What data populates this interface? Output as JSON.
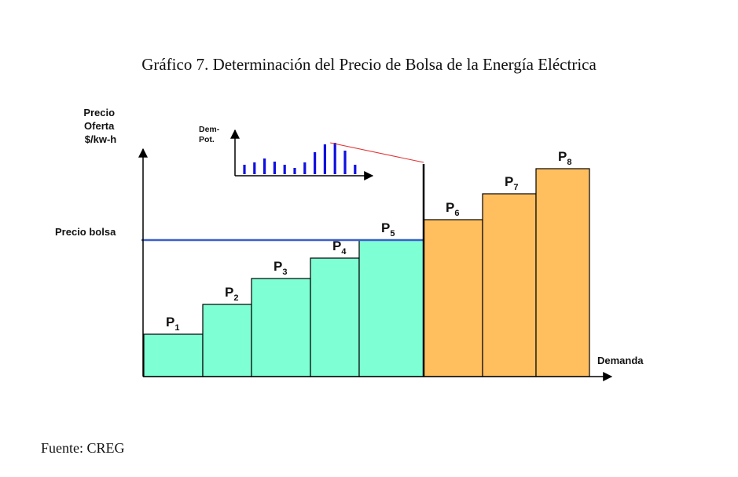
{
  "title": "Gráfico 7. Determinación del Precio de Bolsa de la Energía Eléctrica",
  "source": "Fuente: CREG",
  "chart_data": {
    "type": "bar",
    "y_axis_label": [
      "Precio",
      "Oferta",
      "$/kw-h"
    ],
    "x_axis_label": "Demanda",
    "reference_line": {
      "label": "Precio bolsa",
      "value": 174,
      "color": "#3a5fcd"
    },
    "categories": [
      "P1",
      "P2",
      "P3",
      "P4",
      "P5",
      "P6",
      "P7",
      "P8"
    ],
    "widths": [
      75,
      62,
      75,
      62,
      82,
      75,
      68,
      68
    ],
    "values": [
      54,
      92,
      125,
      151,
      174,
      200,
      233,
      265
    ],
    "ylim": [
      0,
      300
    ],
    "colors": {
      "dispatched": "#7fffd4",
      "not_dispatched": "#ffbf5f"
    },
    "dispatched_count": 5,
    "inset": {
      "y_label": [
        "Dem-",
        "Pot."
      ],
      "values": [
        12,
        15,
        20,
        16,
        12,
        8,
        15,
        28,
        38,
        40,
        30,
        12
      ],
      "color": "#1010e0",
      "trend_color": "#e03030"
    }
  }
}
